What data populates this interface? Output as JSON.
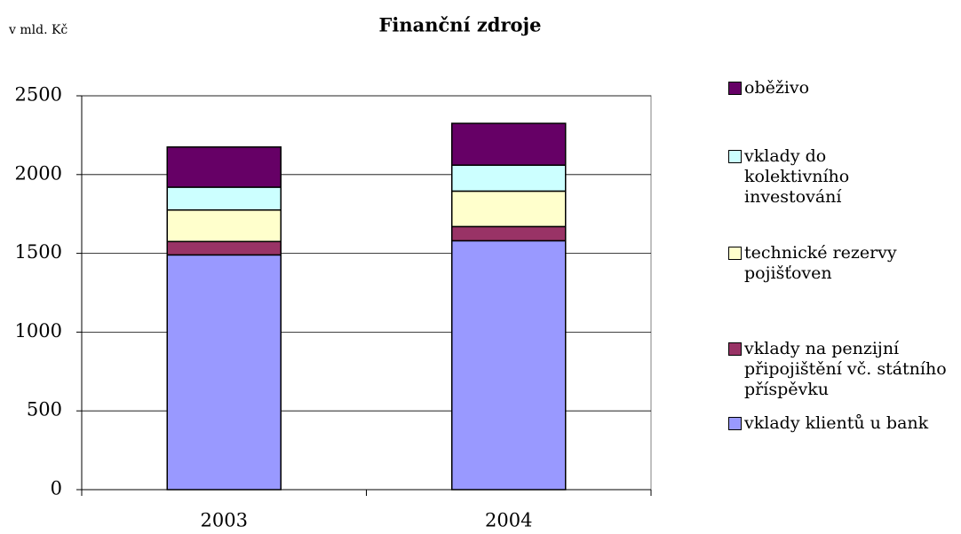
{
  "chart_data": {
    "type": "stacked_bar",
    "title": "Finanční zdroje",
    "y_label": "v mld. Kč",
    "categories": [
      "2003",
      "2004"
    ],
    "series": [
      {
        "name": "vklady klientů u bank",
        "color": "#9999ff",
        "values": [
          1490,
          1580
        ]
      },
      {
        "name": "vklady na penzijní připojištění vč. státního příspěvku",
        "color": "#993366",
        "values": [
          85,
          90
        ]
      },
      {
        "name": "technické rezervy pojišťoven",
        "color": "#ffffcc",
        "values": [
          200,
          225
        ]
      },
      {
        "name": "vklady do kolektivního investování",
        "color": "#ccffff",
        "values": [
          145,
          165
        ]
      },
      {
        "name": "oběživo",
        "color": "#660066",
        "values": [
          255,
          265
        ]
      }
    ],
    "ylim": [
      0,
      2500
    ],
    "yticks": [
      0,
      500,
      1000,
      1500,
      2000,
      2500
    ],
    "grid": true
  }
}
